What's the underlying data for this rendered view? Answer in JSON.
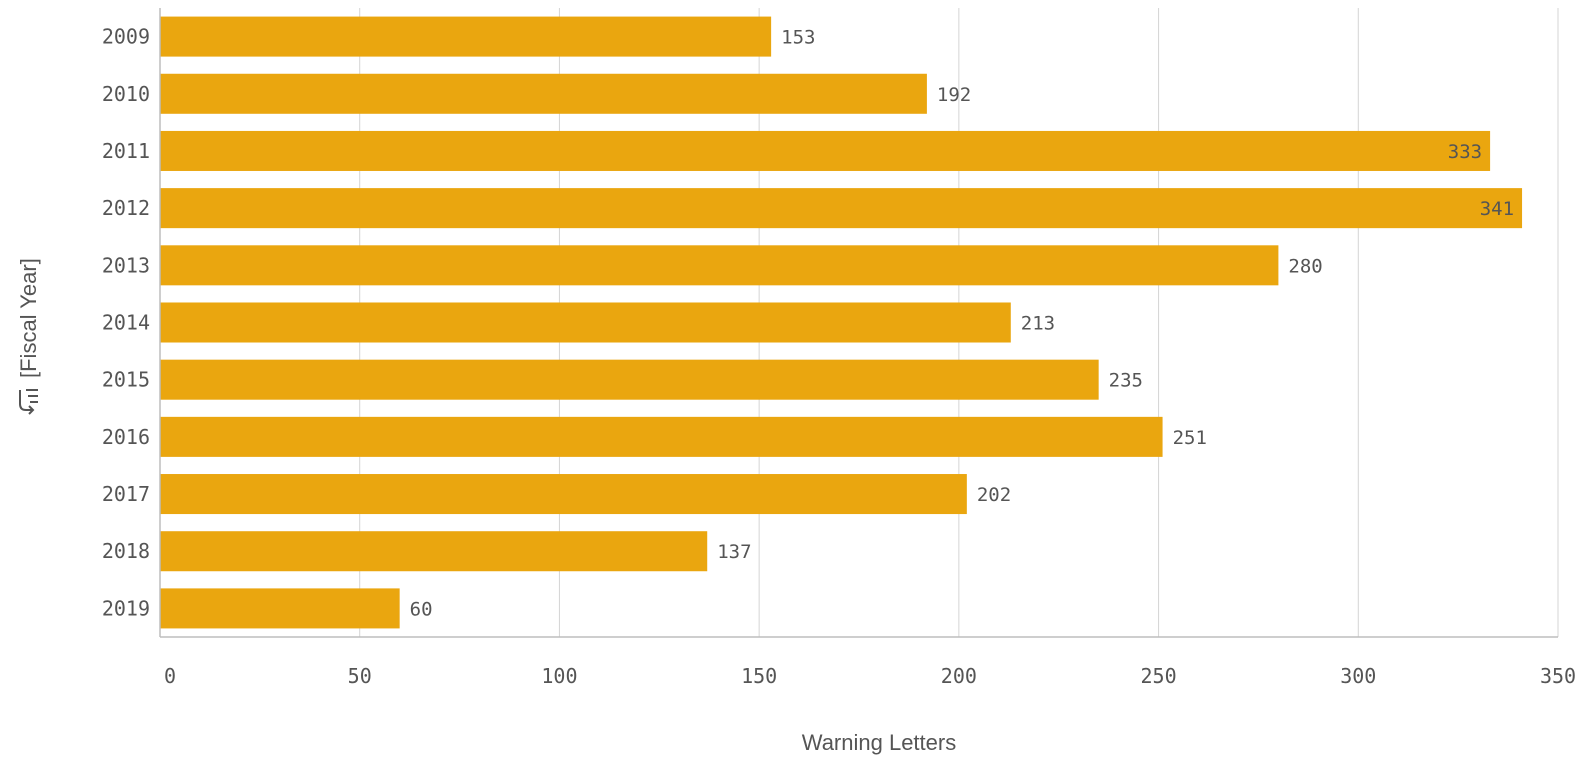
{
  "chart_data": {
    "type": "bar",
    "orientation": "horizontal",
    "categories": [
      "2009",
      "2010",
      "2011",
      "2012",
      "2013",
      "2014",
      "2015",
      "2016",
      "2017",
      "2018",
      "2019"
    ],
    "values": [
      153,
      192,
      333,
      341,
      280,
      213,
      235,
      251,
      202,
      137,
      60
    ],
    "xlabel": "Warning Letters",
    "ylabel": "[Fiscal Year]",
    "xlim": [
      0,
      350
    ],
    "xticks": [
      "0",
      "50",
      "100",
      "150",
      "200",
      "250",
      "300",
      "350"
    ],
    "grid": true,
    "bar_color": "#EAA60F",
    "data_labels": true,
    "ylabel_icon": "sort-icon"
  }
}
